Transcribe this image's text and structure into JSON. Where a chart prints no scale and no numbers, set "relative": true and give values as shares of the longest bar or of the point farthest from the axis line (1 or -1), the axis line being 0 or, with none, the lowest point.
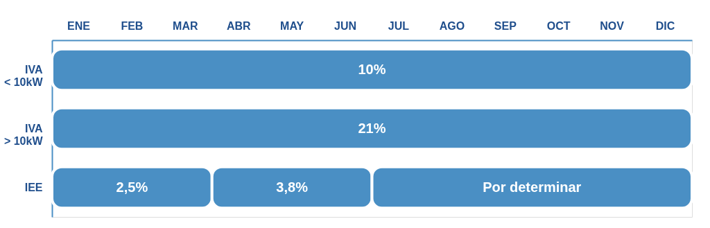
{
  "chart_data": {
    "type": "bar",
    "orientation": "horizontal",
    "relative": true,
    "stacked": true,
    "categories": [
      "IVA\n< 10kW",
      "IVA\n> 10kW",
      "IEE"
    ],
    "series": [
      {
        "color": "#4a8fc4",
        "values": [
          1,
          1,
          0.25
        ]
      },
      {
        "color": "#4a8fc4",
        "values": [
          null,
          null,
          0.25
        ]
      },
      {
        "color": "#4a8fc4",
        "values": [
          null,
          null,
          0.5
        ]
      }
    ],
    "annotations": [
      "ENE",
      "FEB",
      "MAR",
      "ABR",
      "MAY",
      "JUN",
      "JUL",
      "AGO",
      "SEP",
      "OCT",
      "NOV",
      "DIC",
      "10%",
      "21%",
      "2,5%",
      "3,8%",
      "Por determinar"
    ],
    "grid": false,
    "legend": false
  }
}
